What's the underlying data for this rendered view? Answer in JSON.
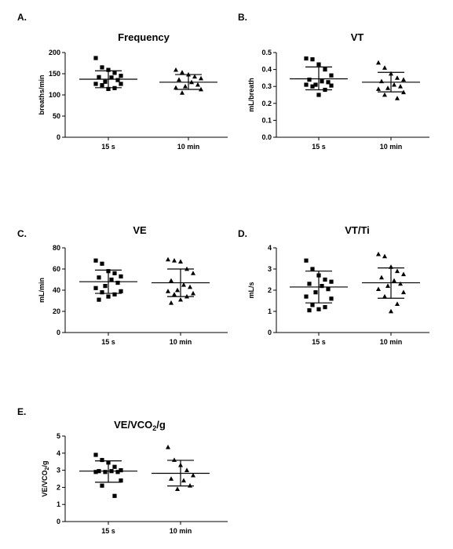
{
  "chart_data": [
    {
      "panel_letter": "A.",
      "type": "scatter",
      "title": "Frequency",
      "ylabel": "breaths/min",
      "ylim": [
        0,
        200
      ],
      "yticks": [
        0,
        50,
        100,
        150,
        200
      ],
      "categories": [
        "15 s",
        "10 min"
      ],
      "marker": [
        "square",
        "triangle"
      ],
      "series": [
        {
          "category": "15 s",
          "mean": 137,
          "sd_upper": 157,
          "sd_lower": 117,
          "values": [
            187,
            165,
            159,
            152,
            145,
            142,
            141,
            135,
            131,
            126,
            126,
            123,
            116,
            114
          ]
        },
        {
          "category": "10 min",
          "mean": 130,
          "sd_upper": 148,
          "sd_lower": 113,
          "values": [
            159,
            153,
            148,
            143,
            139,
            136,
            130,
            124,
            120,
            117,
            113,
            105
          ]
        }
      ]
    },
    {
      "panel_letter": "B.",
      "type": "scatter",
      "title": "VT",
      "ylabel": "mL/breath",
      "ylim": [
        0,
        0.5
      ],
      "yticks": [
        "0.0",
        "0.1",
        "0.2",
        "0.3",
        "0.4",
        "0.5"
      ],
      "categories": [
        "15 s",
        "10 min"
      ],
      "marker": [
        "square",
        "triangle"
      ],
      "series": [
        {
          "category": "15 s",
          "mean": 0.345,
          "sd_upper": 0.415,
          "sd_lower": 0.28,
          "values": [
            0.465,
            0.46,
            0.43,
            0.4,
            0.365,
            0.34,
            0.33,
            0.325,
            0.31,
            0.31,
            0.305,
            0.3,
            0.28,
            0.25
          ]
        },
        {
          "category": "10 min",
          "mean": 0.325,
          "sd_upper": 0.383,
          "sd_lower": 0.268,
          "values": [
            0.44,
            0.41,
            0.375,
            0.35,
            0.34,
            0.33,
            0.31,
            0.3,
            0.29,
            0.285,
            0.265,
            0.25,
            0.23
          ]
        }
      ]
    },
    {
      "panel_letter": "C.",
      "type": "scatter",
      "title": "VE",
      "ylabel": "mL/min",
      "ylim": [
        0,
        80
      ],
      "yticks": [
        0,
        20,
        40,
        60,
        80
      ],
      "categories": [
        "15 s",
        "10 min"
      ],
      "marker": [
        "square",
        "triangle"
      ],
      "series": [
        {
          "category": "15 s",
          "mean": 48,
          "sd_upper": 59,
          "sd_lower": 37,
          "values": [
            68,
            65,
            58,
            56,
            53,
            52,
            50,
            47,
            44,
            42,
            39,
            38,
            36,
            34,
            31
          ]
        },
        {
          "category": "10 min",
          "mean": 47,
          "sd_upper": 60,
          "sd_lower": 34,
          "values": [
            69,
            68,
            67,
            60,
            56,
            49,
            45,
            43,
            40,
            39,
            37,
            36,
            34,
            31,
            28
          ]
        }
      ]
    },
    {
      "panel_letter": "D.",
      "type": "scatter",
      "title": "VT/Ti",
      "ylabel": "mL/s",
      "ylim": [
        0,
        4
      ],
      "yticks": [
        0,
        1,
        2,
        3,
        4
      ],
      "categories": [
        "15 s",
        "10 min"
      ],
      "marker": [
        "square",
        "triangle"
      ],
      "series": [
        {
          "category": "15 s",
          "mean": 2.15,
          "sd_upper": 2.9,
          "sd_lower": 1.4,
          "values": [
            3.4,
            3.0,
            2.7,
            2.5,
            2.4,
            2.3,
            2.2,
            2.05,
            1.9,
            1.7,
            1.6,
            1.3,
            1.2,
            1.1,
            1.05
          ]
        },
        {
          "category": "10 min",
          "mean": 2.35,
          "sd_upper": 3.05,
          "sd_lower": 1.62,
          "values": [
            3.7,
            3.6,
            3.1,
            2.9,
            2.75,
            2.6,
            2.45,
            2.3,
            2.2,
            2.05,
            1.9,
            1.7,
            1.35,
            1.0
          ]
        }
      ]
    },
    {
      "panel_letter": "E.",
      "type": "scatter",
      "title": "VE/VCO",
      "title_subscript": "2",
      "title_suffix": "/g",
      "ylabel": "VE/VCO",
      "ylabel_subscript": "2",
      "ylabel_suffix": "/g",
      "ylim": [
        0,
        5
      ],
      "yticks": [
        0,
        1,
        2,
        3,
        4,
        5
      ],
      "categories": [
        "15 s",
        "10 min"
      ],
      "marker": [
        "square",
        "triangle"
      ],
      "series": [
        {
          "category": "15 s",
          "mean": 2.95,
          "sd_upper": 3.55,
          "sd_lower": 2.3,
          "values": [
            3.9,
            3.6,
            3.45,
            3.2,
            3.0,
            2.95,
            2.95,
            2.9,
            2.9,
            2.9,
            2.4,
            2.1,
            1.5
          ]
        },
        {
          "category": "10 min",
          "mean": 2.82,
          "sd_upper": 3.58,
          "sd_lower": 2.08,
          "values": [
            4.35,
            3.6,
            3.3,
            3.0,
            2.7,
            2.5,
            2.4,
            2.1,
            1.9
          ]
        }
      ]
    }
  ]
}
